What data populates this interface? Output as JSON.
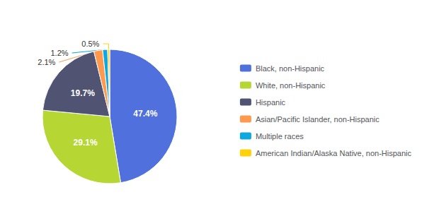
{
  "chart_data": {
    "type": "pie",
    "categories": [
      "Black, non-Hispanic",
      "White, non-Hispanic",
      "Hispanic",
      "Asian/Pacific Islander, non-Hispanic",
      "Multiple races",
      "American Indian/Alaska Native, non-Hispanic"
    ],
    "values": [
      47.4,
      29.1,
      19.7,
      2.1,
      1.2,
      0.5
    ],
    "value_labels": [
      "47.4%",
      "29.1%",
      "19.7%",
      "2.1%",
      "1.2%",
      "0.5%"
    ],
    "data_labels": true,
    "legend": "right"
  }
}
